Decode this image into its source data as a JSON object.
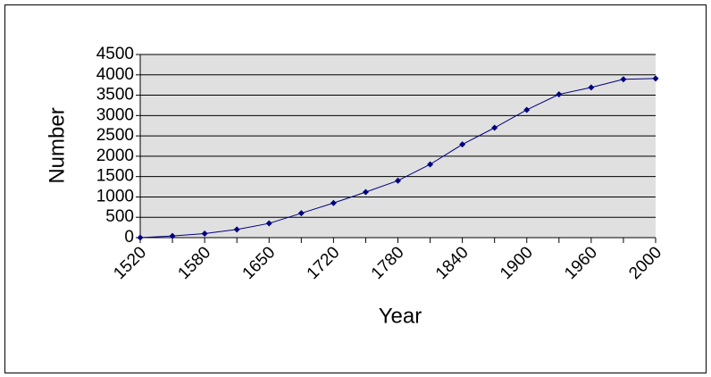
{
  "chart_data": {
    "type": "line",
    "xlabel": "Year",
    "ylabel": "Number",
    "categories": [
      "1520",
      null,
      "1580",
      null,
      "1650",
      null,
      "1720",
      null,
      "1780",
      null,
      "1840",
      null,
      "1900",
      null,
      "1960",
      null,
      "2000"
    ],
    "series": [
      {
        "color": "#000080",
        "values": [
          0,
          40,
          100,
          200,
          350,
          600,
          850,
          1120,
          1400,
          1800,
          2290,
          2700,
          3140,
          3520,
          3690,
          3890,
          3910
        ]
      }
    ],
    "ylim": [
      0,
      4500
    ],
    "yticks": [
      0,
      500,
      1000,
      1500,
      2000,
      2500,
      3000,
      3500,
      4000,
      4500
    ],
    "grid": true
  }
}
